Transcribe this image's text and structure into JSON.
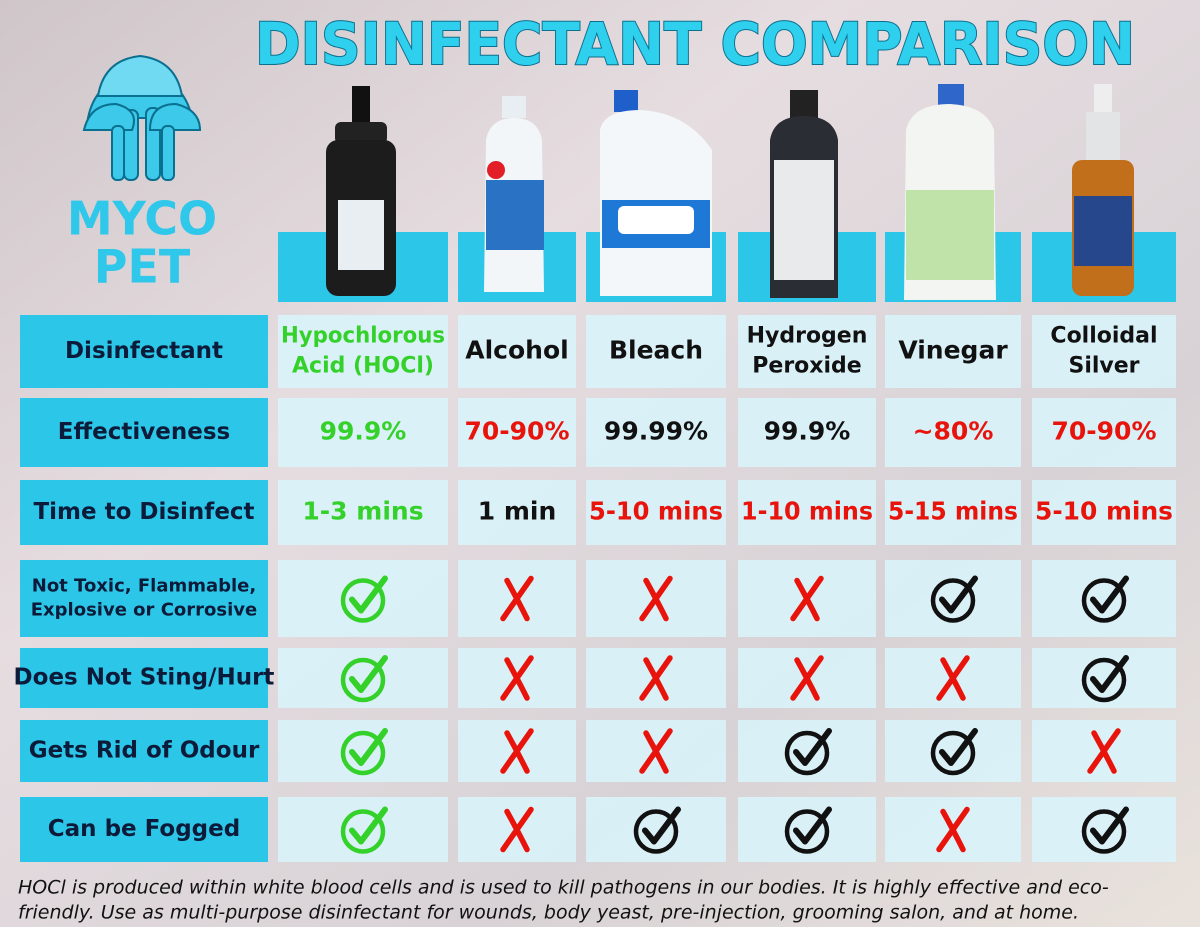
{
  "title": "DISINFECTANT COMPARISON",
  "logo": {
    "lines": [
      "MYCO",
      "PET"
    ]
  },
  "table": {
    "rows": [
      {
        "label": [
          "Disinfectant"
        ],
        "cells": [
          {
            "text": [
              "Hypochlorous",
              "Acid (HOCl)"
            ],
            "color": "#34d12a"
          },
          {
            "text": [
              "Alcohol"
            ],
            "color": "#111111"
          },
          {
            "text": [
              "Bleach"
            ],
            "color": "#111111"
          },
          {
            "text": [
              "Hydrogen",
              "Peroxide"
            ],
            "color": "#111111"
          },
          {
            "text": [
              "Vinegar"
            ],
            "color": "#111111"
          },
          {
            "text": [
              "Colloidal",
              "Silver"
            ],
            "color": "#111111"
          }
        ]
      },
      {
        "label": [
          "Effectiveness"
        ],
        "cells": [
          {
            "text": [
              "99.9%"
            ],
            "color": "#34d12a"
          },
          {
            "text": [
              "70-90%"
            ],
            "color": "#e8140c"
          },
          {
            "text": [
              "99.99%"
            ],
            "color": "#111111"
          },
          {
            "text": [
              "99.9%"
            ],
            "color": "#111111"
          },
          {
            "text": [
              "~80%"
            ],
            "color": "#e8140c"
          },
          {
            "text": [
              "70-90%"
            ],
            "color": "#e8140c"
          }
        ]
      },
      {
        "label": [
          "Time to Disinfect"
        ],
        "cells": [
          {
            "text": [
              "1-3 mins"
            ],
            "color": "#34d12a"
          },
          {
            "text": [
              "1 min"
            ],
            "color": "#111111"
          },
          {
            "text": [
              "5-10 mins"
            ],
            "color": "#e8140c"
          },
          {
            "text": [
              "1-10 mins"
            ],
            "color": "#e8140c"
          },
          {
            "text": [
              "5-15 mins"
            ],
            "color": "#e8140c"
          },
          {
            "text": [
              "5-10 mins"
            ],
            "color": "#e8140c"
          }
        ]
      },
      {
        "label": [
          "Not Toxic, Flammable,",
          "Explosive or Corrosive"
        ],
        "cells": [
          {
            "ok": true,
            "color": "#34d12a"
          },
          {
            "ok": false,
            "color": "#e8140c"
          },
          {
            "ok": false,
            "color": "#e8140c"
          },
          {
            "ok": false,
            "color": "#e8140c"
          },
          {
            "ok": true,
            "color": "#111111"
          },
          {
            "ok": true,
            "color": "#111111"
          }
        ]
      },
      {
        "label": [
          "Does Not Sting/Hurt"
        ],
        "cells": [
          {
            "ok": true,
            "color": "#34d12a"
          },
          {
            "ok": false,
            "color": "#e8140c"
          },
          {
            "ok": false,
            "color": "#e8140c"
          },
          {
            "ok": false,
            "color": "#e8140c"
          },
          {
            "ok": false,
            "color": "#e8140c"
          },
          {
            "ok": true,
            "color": "#111111"
          }
        ]
      },
      {
        "label": [
          "Gets Rid of Odour"
        ],
        "cells": [
          {
            "ok": true,
            "color": "#34d12a"
          },
          {
            "ok": false,
            "color": "#e8140c"
          },
          {
            "ok": false,
            "color": "#e8140c"
          },
          {
            "ok": true,
            "color": "#111111"
          },
          {
            "ok": true,
            "color": "#111111"
          },
          {
            "ok": false,
            "color": "#e8140c"
          }
        ]
      },
      {
        "label": [
          "Can be Fogged"
        ],
        "cells": [
          {
            "ok": true,
            "color": "#34d12a"
          },
          {
            "ok": false,
            "color": "#e8140c"
          },
          {
            "ok": true,
            "color": "#111111"
          },
          {
            "ok": true,
            "color": "#111111"
          },
          {
            "ok": false,
            "color": "#e8140c"
          },
          {
            "ok": true,
            "color": "#111111"
          }
        ]
      }
    ]
  },
  "note": [
    "HOCl is produced within white blood cells and is used to kill pathogens in our bodies. It is highly effective and eco-",
    "friendly. Use as multi-purpose disinfectant for wounds, body yeast, pre-injection, grooming salon, and at home."
  ]
}
